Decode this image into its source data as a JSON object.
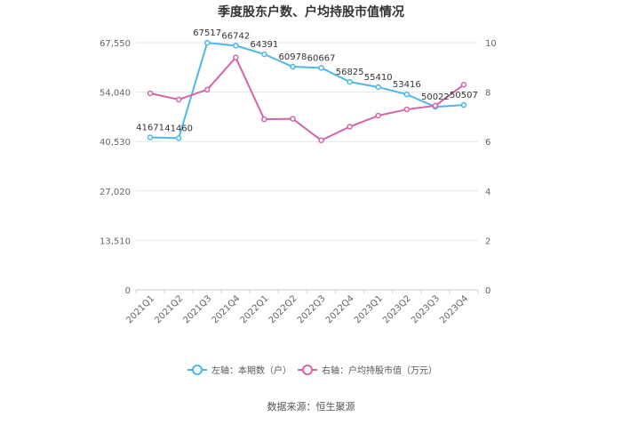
{
  "chart_data": {
    "type": "line",
    "title": "季度股东户数、户均持股市值情况",
    "categories": [
      "2021Q1",
      "2021Q2",
      "2021Q3",
      "2021Q4",
      "2022Q1",
      "2022Q2",
      "2022Q3",
      "2022Q4",
      "2023Q1",
      "2023Q2",
      "2023Q3",
      "2023Q4"
    ],
    "y_left": {
      "ticks": [
        "0",
        "13,510",
        "27,020",
        "40,530",
        "54,040",
        "67,550"
      ],
      "range": [
        0,
        67550
      ]
    },
    "y_right": {
      "ticks": [
        "0",
        "2",
        "4",
        "6",
        "8",
        "10"
      ],
      "range": [
        0,
        10
      ]
    },
    "grid": true,
    "legend_position": "bottom",
    "series": [
      {
        "name": "左轴：本期数（户）",
        "axis": "left",
        "color": "#4db8e8",
        "values": [
          41671,
          41460,
          67517,
          66742,
          64391,
          60978,
          60667,
          56825,
          55410,
          53416,
          50022,
          50507
        ],
        "labels": [
          "41671",
          "41460",
          "67517",
          "66742",
          "64391",
          "60978",
          "60667",
          "56825",
          "55410",
          "53416",
          "50022",
          "50507"
        ]
      },
      {
        "name": "右轴：户均持股市值（万元）",
        "axis": "right",
        "color": "#d563a8",
        "values": [
          7.95,
          7.7,
          8.1,
          9.4,
          6.9,
          6.92,
          6.05,
          6.6,
          7.05,
          7.3,
          7.45,
          8.3
        ]
      }
    ]
  },
  "source": "数据来源：恒生聚源"
}
